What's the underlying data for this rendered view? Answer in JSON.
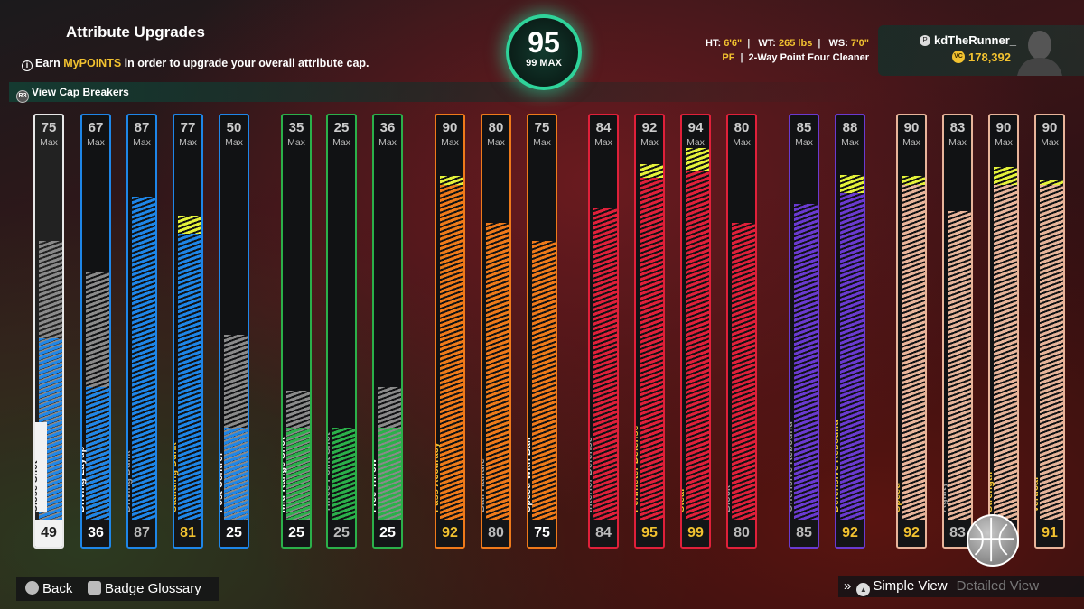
{
  "header": {
    "title": "Attribute Upgrades",
    "subtitle_prefix": "Earn ",
    "subtitle_highlight": "MyPOINTS",
    "subtitle_suffix": " in order to upgrade your overall attribute cap.",
    "cap_breakers_label": "View Cap Breakers"
  },
  "overall": {
    "rating": "95",
    "max_label": "99 MAX"
  },
  "player": {
    "ht_label": "HT:",
    "ht": "6'6\"",
    "wt_label": "WT:",
    "wt": "265 lbs",
    "ws_label": "WS:",
    "ws": "7'0\"",
    "position": "PF",
    "archetype": "2-Way Point Four Cleaner",
    "gamertag": "kdTheRunner_",
    "vc": "178,392"
  },
  "max_label": "Max",
  "attributes": [
    {
      "name": "Close Shot",
      "max": 75,
      "current": 49,
      "upgrade": 0,
      "color": "#1e86e8",
      "border": "#e8e8e8",
      "text": "#ffffff"
    },
    {
      "name": "Driving Layup",
      "max": 67,
      "current": 36,
      "upgrade": 0,
      "color": "#1e86e8",
      "border": "#1e86e8",
      "text": "#ffffff"
    },
    {
      "name": "Driving Dunk",
      "max": 87,
      "current": 87,
      "upgrade": 0,
      "color": "#1e86e8",
      "border": "#1e86e8",
      "text": "#9a9a9a"
    },
    {
      "name": "Standing Dunk",
      "max": 77,
      "current": 81,
      "upgrade": 4,
      "color": "#1e86e8",
      "border": "#1e86e8",
      "text": "#f2c230"
    },
    {
      "name": "Post Control",
      "max": 50,
      "current": 25,
      "upgrade": 0,
      "color": "#1e86e8",
      "border": "#1e86e8",
      "text": "#ffffff"
    },
    {
      "name": "Mid-Range Shot",
      "max": 35,
      "current": 25,
      "upgrade": 0,
      "color": "#2bb04a",
      "border": "#2bb04a",
      "text": "#ffffff"
    },
    {
      "name": "Three-Point Shot",
      "max": 25,
      "current": 25,
      "upgrade": 0,
      "color": "#2bb04a",
      "border": "#2bb04a",
      "text": "#9a9a9a"
    },
    {
      "name": "Free Throw",
      "max": 36,
      "current": 25,
      "upgrade": 0,
      "color": "#2bb04a",
      "border": "#2bb04a",
      "text": "#ffffff"
    },
    {
      "name": "Pass Accuracy",
      "max": 90,
      "current": 92,
      "upgrade": 2,
      "color": "#ef7a1a",
      "border": "#ef7a1a",
      "text": "#f2c230"
    },
    {
      "name": "Ball Handle",
      "max": 80,
      "current": 80,
      "upgrade": 0,
      "color": "#ef7a1a",
      "border": "#ef7a1a",
      "text": "#9a9a9a"
    },
    {
      "name": "Speed With Ball",
      "max": 75,
      "current": 75,
      "upgrade": 0,
      "color": "#ef7a1a",
      "border": "#ef7a1a",
      "text": "#ffffff"
    },
    {
      "name": "Interior Defense",
      "max": 84,
      "current": 84,
      "upgrade": 0,
      "color": "#e0203a",
      "border": "#e0203a",
      "text": "#9a9a9a"
    },
    {
      "name": "Perimeter Defense",
      "max": 92,
      "current": 95,
      "upgrade": 3,
      "color": "#e0203a",
      "border": "#e0203a",
      "text": "#f2c230"
    },
    {
      "name": "Steal",
      "max": 94,
      "current": 99,
      "upgrade": 5,
      "color": "#e0203a",
      "border": "#e0203a",
      "text": "#f2c230"
    },
    {
      "name": "Block",
      "max": 80,
      "current": 80,
      "upgrade": 0,
      "color": "#e0203a",
      "border": "#e0203a",
      "text": "#9a9a9a"
    },
    {
      "name": "Offensive Rebound",
      "max": 85,
      "current": 85,
      "upgrade": 0,
      "color": "#6a3ad0",
      "border": "#6a3ad0",
      "text": "#9a9a9a"
    },
    {
      "name": "Defensive Rebound",
      "max": 88,
      "current": 92,
      "upgrade": 4,
      "color": "#6a3ad0",
      "border": "#6a3ad0",
      "text": "#f2c230"
    },
    {
      "name": "Speed",
      "max": 90,
      "current": 92,
      "upgrade": 2,
      "color": "#e8b49a",
      "border": "#e8b49a",
      "text": "#f2c230"
    },
    {
      "name": "Agility",
      "max": 83,
      "current": 83,
      "upgrade": 0,
      "color": "#e8b49a",
      "border": "#e8b49a",
      "text": "#9a9a9a"
    },
    {
      "name": "Strength",
      "max": 90,
      "current": 94,
      "upgrade": 4,
      "color": "#e8b49a",
      "border": "#e8b49a",
      "text": "#f2c230"
    },
    {
      "name": "Vertical",
      "max": 90,
      "current": 91,
      "upgrade": 1,
      "color": "#e8b49a",
      "border": "#e8b49a",
      "text": "#f2c230"
    }
  ],
  "footer": {
    "back": "Back",
    "badge_glossary": "Badge Glossary",
    "simple_view": "Simple View",
    "detailed_view": "Detailed View"
  }
}
